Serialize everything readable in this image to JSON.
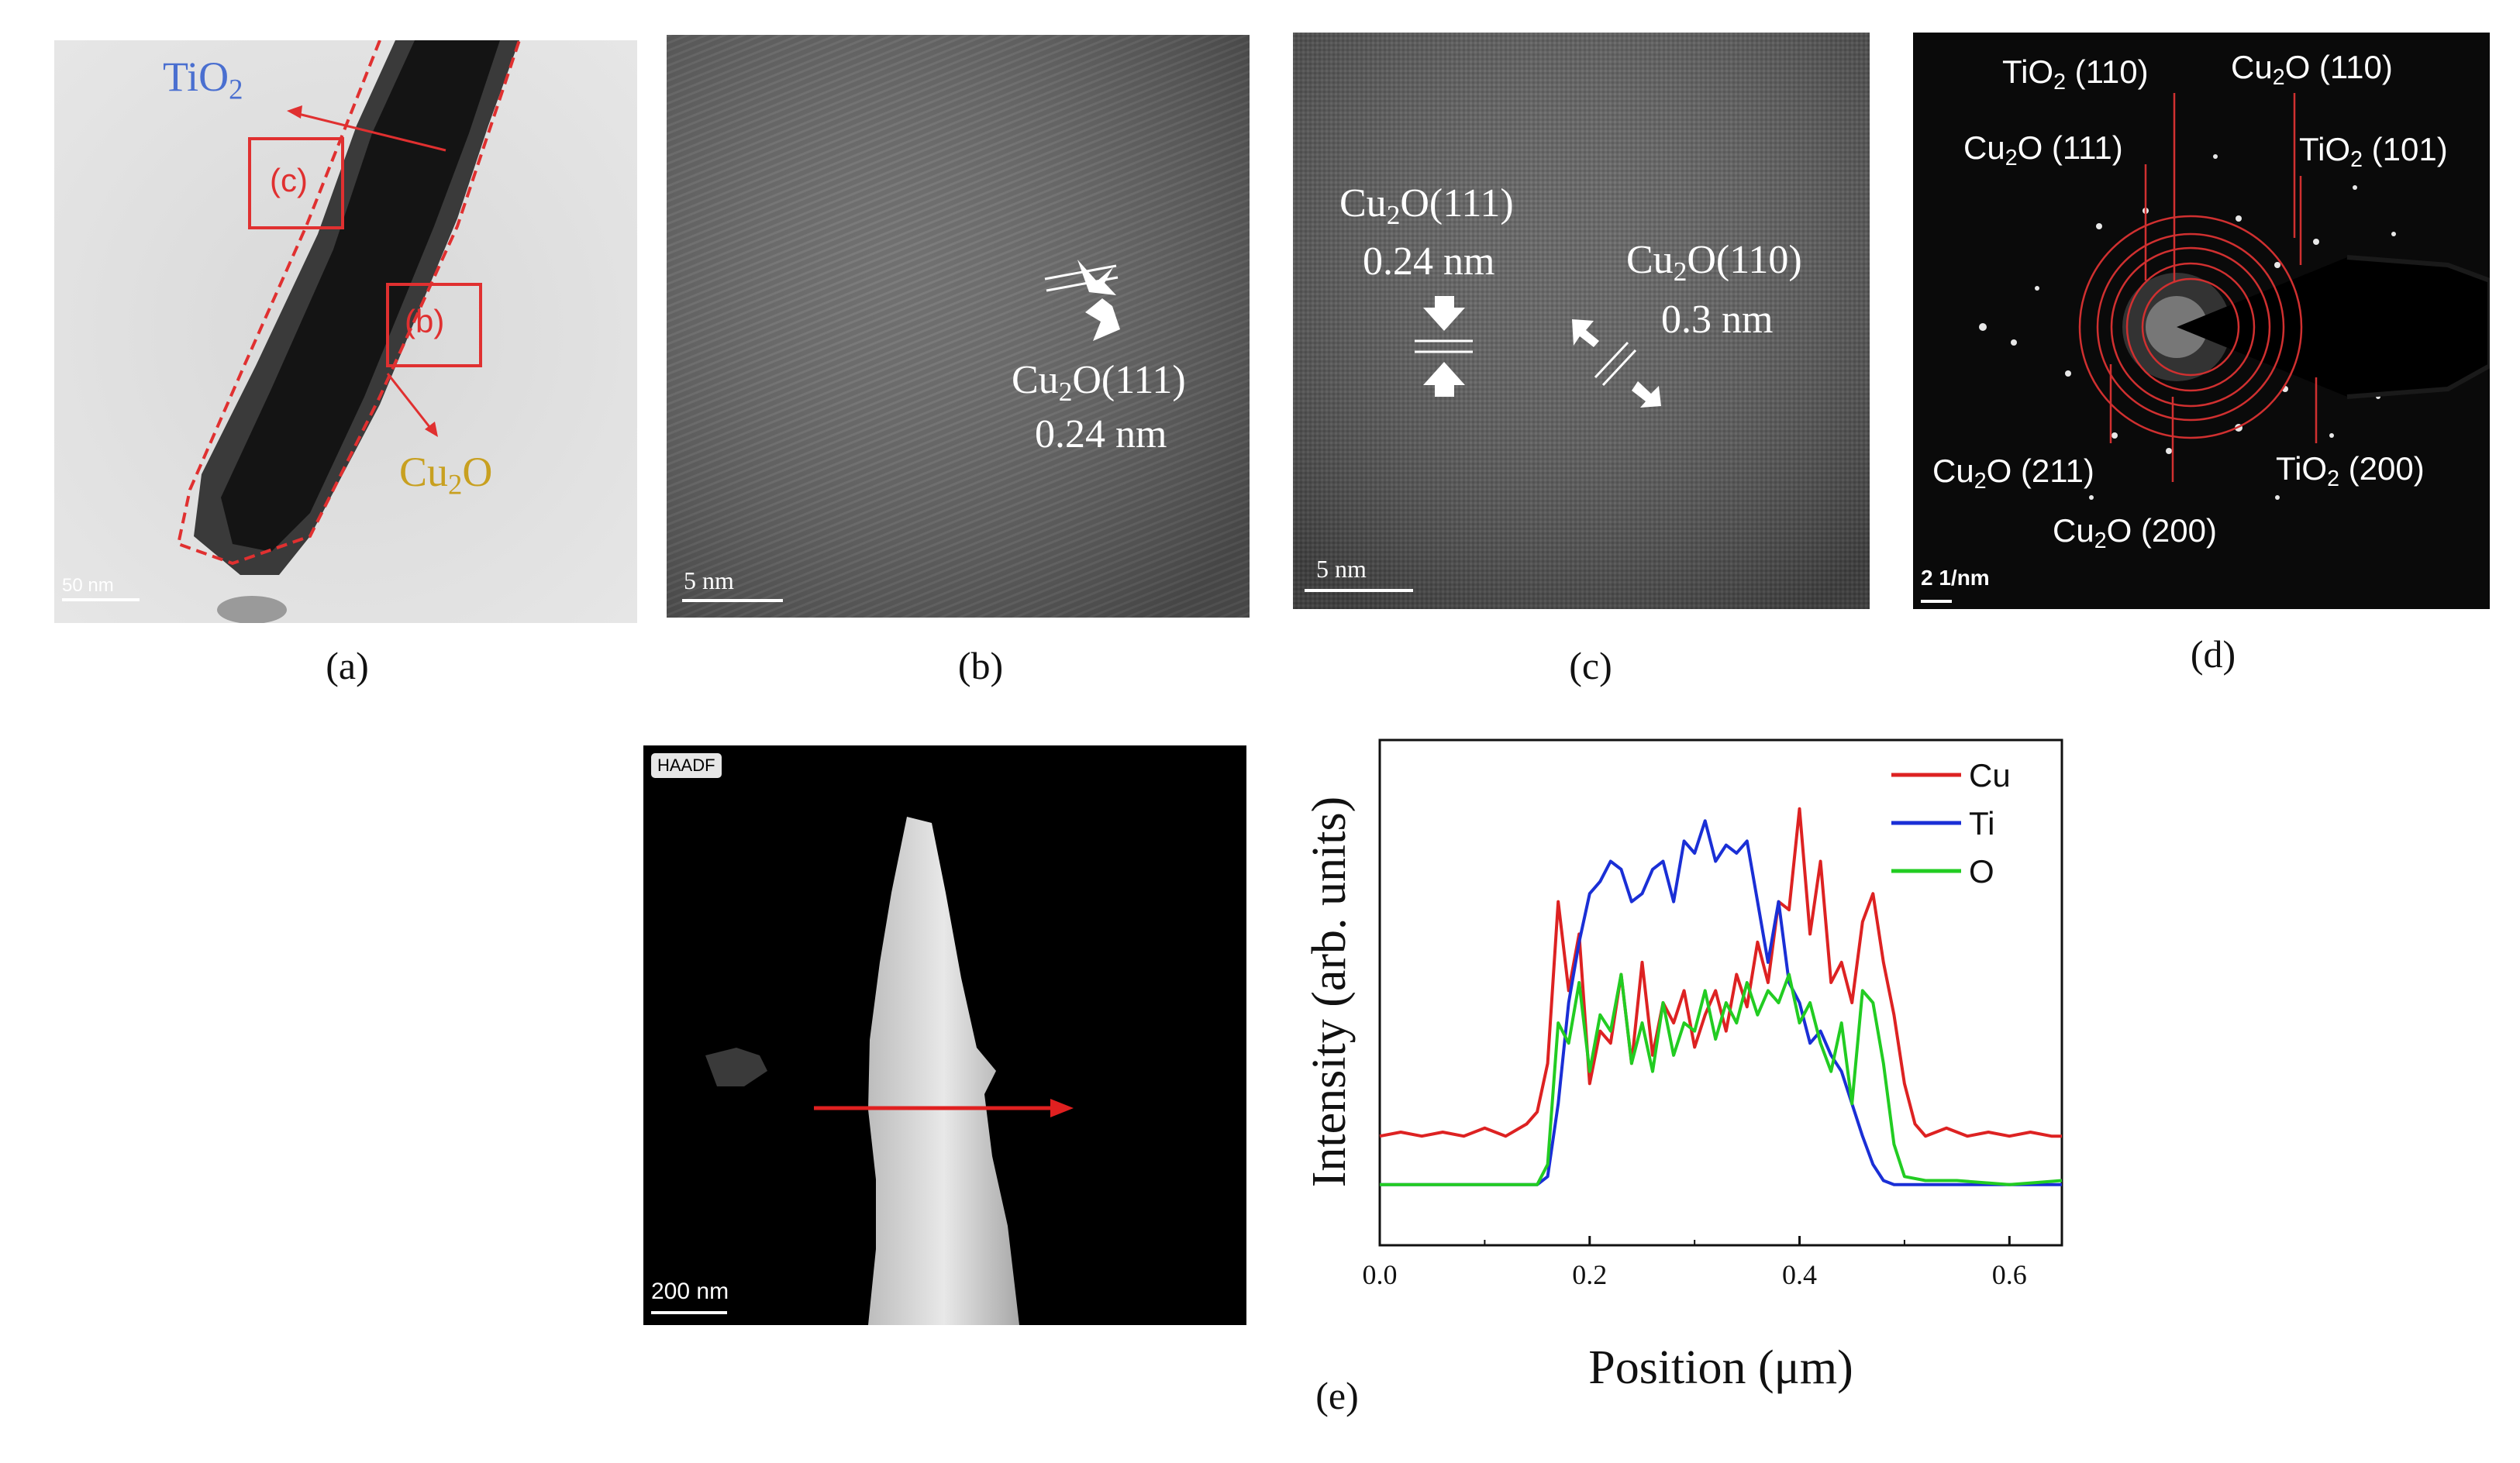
{
  "panel_a": {
    "tio2_label": "TiO",
    "tio2_sub": "2",
    "box_c": "(c)",
    "box_b": "(b)",
    "cu2o_label_pre": "Cu",
    "cu2o_label_sub": "2",
    "cu2o_label_post": "O",
    "scale_bar": "50 nm",
    "caption": "(a)"
  },
  "panel_b": {
    "fringe_label_pre": "Cu",
    "fringe_label_sub": "2",
    "fringe_label_post": "O(111)",
    "spacing": "0.24 nm",
    "scale_bar": "5 nm",
    "caption": "(b)"
  },
  "panel_c": {
    "label1_pre": "Cu",
    "label1_sub": "2",
    "label1_post": "O(111)",
    "spacing1": "0.24 nm",
    "label2_pre": "Cu",
    "label2_sub": "2",
    "label2_post": "O(110)",
    "spacing2": "0.3 nm",
    "scale_bar": "5 nm",
    "caption": "(c)"
  },
  "panel_d": {
    "rings": {
      "tio2_110": {
        "pre": "TiO",
        "sub": "2",
        "post": " (110)"
      },
      "cu2o_110": {
        "pre": "Cu",
        "sub": "2",
        "post": "O (110)"
      },
      "cu2o_111": {
        "pre": "Cu",
        "sub": "2",
        "post": "O (111)"
      },
      "tio2_101": {
        "pre": "TiO",
        "sub": "2",
        "post": " (101)"
      },
      "cu2o_211": {
        "pre": "Cu",
        "sub": "2",
        "post": "O (211)"
      },
      "tio2_200": {
        "pre": "TiO",
        "sub": "2",
        "post": " (200)"
      },
      "cu2o_200": {
        "pre": "Cu",
        "sub": "2",
        "post": "O (200)"
      }
    },
    "scale_bar": "2 1/nm",
    "caption": "(d)"
  },
  "panel_e_image": {
    "mode_badge": "HAADF",
    "scale_bar": "200 nm"
  },
  "colors": {
    "cu": "#dd2222",
    "ti": "#1a2fd6",
    "o": "#22cc22",
    "annotation_red": "#e03030",
    "tio2_label": "#4a6fd0",
    "cu2o_label": "#c8a020"
  },
  "chart_data": {
    "type": "line",
    "title": "",
    "xlabel": "Position (μm)",
    "ylabel": "Intensity (arb. units)",
    "xlim": [
      0.0,
      0.65
    ],
    "ylim": [
      0,
      1
    ],
    "xticks": [
      0.0,
      0.2,
      0.4,
      0.6
    ],
    "xtick_labels": [
      "0.0",
      "0.2",
      "0.4",
      "0.6"
    ],
    "legend_position": "top-right",
    "caption": "(e)",
    "series": [
      {
        "name": "Cu",
        "color": "#dd2222",
        "x": [
          0.0,
          0.02,
          0.04,
          0.06,
          0.08,
          0.1,
          0.12,
          0.14,
          0.15,
          0.16,
          0.17,
          0.18,
          0.19,
          0.2,
          0.21,
          0.22,
          0.23,
          0.24,
          0.25,
          0.26,
          0.27,
          0.28,
          0.29,
          0.3,
          0.31,
          0.32,
          0.33,
          0.34,
          0.35,
          0.36,
          0.37,
          0.38,
          0.39,
          0.4,
          0.41,
          0.42,
          0.43,
          0.44,
          0.45,
          0.46,
          0.47,
          0.48,
          0.49,
          0.5,
          0.51,
          0.52,
          0.54,
          0.56,
          0.58,
          0.6,
          0.62,
          0.64,
          0.65
        ],
        "values": [
          0.12,
          0.13,
          0.12,
          0.13,
          0.12,
          0.14,
          0.12,
          0.15,
          0.18,
          0.3,
          0.7,
          0.48,
          0.62,
          0.25,
          0.38,
          0.35,
          0.52,
          0.3,
          0.55,
          0.32,
          0.45,
          0.4,
          0.48,
          0.34,
          0.42,
          0.48,
          0.38,
          0.52,
          0.44,
          0.6,
          0.5,
          0.7,
          0.68,
          0.93,
          0.62,
          0.8,
          0.5,
          0.55,
          0.45,
          0.65,
          0.72,
          0.55,
          0.42,
          0.25,
          0.15,
          0.12,
          0.14,
          0.12,
          0.13,
          0.12,
          0.13,
          0.12,
          0.12
        ]
      },
      {
        "name": "Ti",
        "color": "#1a2fd6",
        "x": [
          0.0,
          0.05,
          0.1,
          0.15,
          0.16,
          0.17,
          0.18,
          0.19,
          0.2,
          0.21,
          0.22,
          0.23,
          0.24,
          0.25,
          0.26,
          0.27,
          0.28,
          0.29,
          0.3,
          0.31,
          0.32,
          0.33,
          0.34,
          0.35,
          0.36,
          0.37,
          0.38,
          0.39,
          0.4,
          0.41,
          0.42,
          0.43,
          0.44,
          0.45,
          0.46,
          0.47,
          0.48,
          0.49,
          0.5,
          0.55,
          0.6,
          0.65
        ],
        "values": [
          0.0,
          0.0,
          0.0,
          0.0,
          0.02,
          0.2,
          0.45,
          0.6,
          0.72,
          0.75,
          0.8,
          0.78,
          0.7,
          0.72,
          0.78,
          0.8,
          0.7,
          0.85,
          0.82,
          0.9,
          0.8,
          0.84,
          0.82,
          0.85,
          0.7,
          0.55,
          0.7,
          0.5,
          0.45,
          0.35,
          0.38,
          0.32,
          0.28,
          0.2,
          0.12,
          0.05,
          0.01,
          0.0,
          0.0,
          0.0,
          0.0,
          0.0
        ]
      },
      {
        "name": "O",
        "color": "#22cc22",
        "x": [
          0.0,
          0.05,
          0.1,
          0.15,
          0.16,
          0.17,
          0.18,
          0.19,
          0.2,
          0.21,
          0.22,
          0.23,
          0.24,
          0.25,
          0.26,
          0.27,
          0.28,
          0.29,
          0.3,
          0.31,
          0.32,
          0.33,
          0.34,
          0.35,
          0.36,
          0.37,
          0.38,
          0.39,
          0.4,
          0.41,
          0.42,
          0.43,
          0.44,
          0.45,
          0.46,
          0.47,
          0.48,
          0.49,
          0.5,
          0.52,
          0.55,
          0.6,
          0.65
        ],
        "values": [
          0.0,
          0.0,
          0.0,
          0.0,
          0.05,
          0.4,
          0.35,
          0.5,
          0.28,
          0.42,
          0.38,
          0.52,
          0.3,
          0.4,
          0.28,
          0.45,
          0.32,
          0.4,
          0.38,
          0.48,
          0.36,
          0.45,
          0.4,
          0.5,
          0.42,
          0.48,
          0.45,
          0.52,
          0.4,
          0.45,
          0.35,
          0.28,
          0.4,
          0.2,
          0.48,
          0.45,
          0.3,
          0.1,
          0.02,
          0.01,
          0.01,
          0.0,
          0.01
        ]
      }
    ]
  }
}
